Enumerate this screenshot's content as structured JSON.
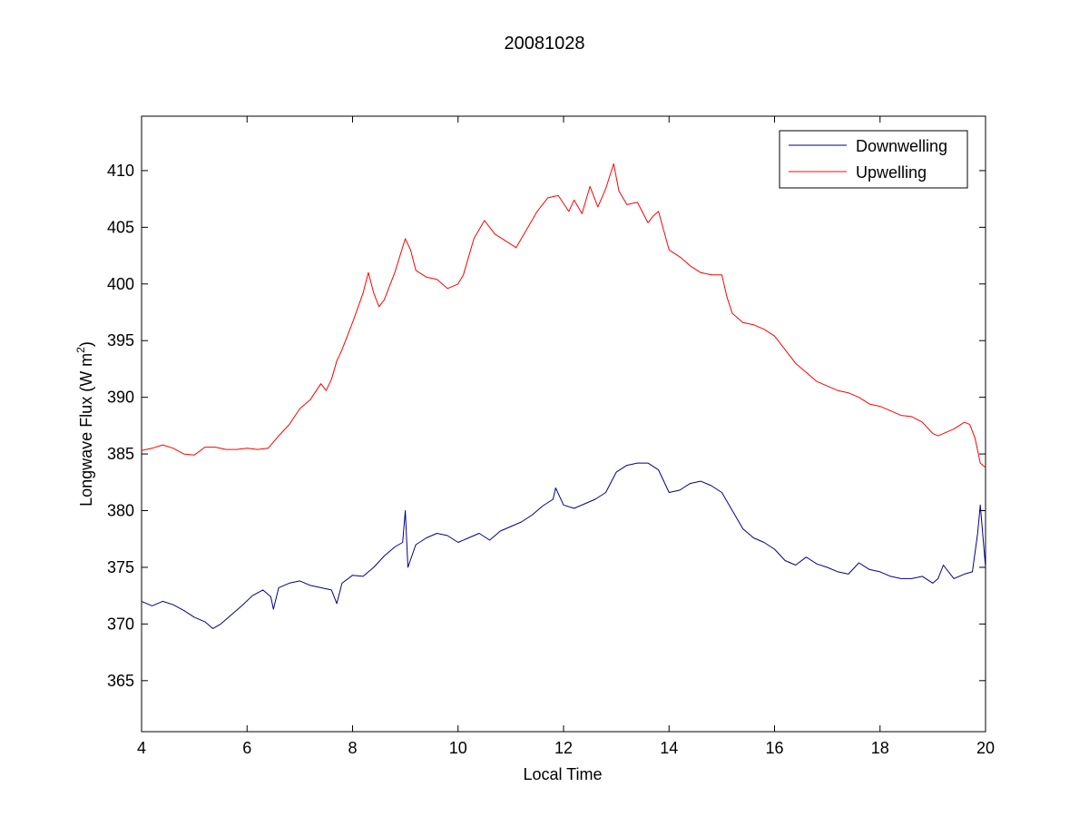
{
  "chart_data": {
    "type": "line",
    "title": "20081028",
    "xlabel": "Local Time",
    "ylabel_main": "Longwave Flux (W m",
    "ylabel_sup": "2",
    "ylabel_close": ")",
    "xlim": [
      4,
      20
    ],
    "ylim": [
      360.5,
      414.8
    ],
    "xticks": [
      "4",
      "6",
      "8",
      "10",
      "12",
      "14",
      "16",
      "18",
      "20"
    ],
    "yticks": [
      "365",
      "370",
      "375",
      "380",
      "385",
      "390",
      "395",
      "400",
      "405",
      "410"
    ],
    "legend_position": "top-right",
    "series": [
      {
        "name": "Downwelling",
        "color": "#00008b",
        "x": [
          4.0,
          4.2,
          4.4,
          4.6,
          4.8,
          5.0,
          5.2,
          5.35,
          5.5,
          5.7,
          5.9,
          6.1,
          6.3,
          6.45,
          6.5,
          6.6,
          6.8,
          7.0,
          7.2,
          7.4,
          7.6,
          7.7,
          7.8,
          8.0,
          8.2,
          8.4,
          8.6,
          8.8,
          8.95,
          9.0,
          9.05,
          9.2,
          9.4,
          9.6,
          9.8,
          10.0,
          10.2,
          10.4,
          10.6,
          10.8,
          11.0,
          11.2,
          11.4,
          11.6,
          11.8,
          11.85,
          12.0,
          12.2,
          12.4,
          12.6,
          12.8,
          13.0,
          13.2,
          13.4,
          13.6,
          13.8,
          14.0,
          14.2,
          14.4,
          14.6,
          14.8,
          15.0,
          15.2,
          15.4,
          15.6,
          15.8,
          16.0,
          16.2,
          16.4,
          16.6,
          16.8,
          17.0,
          17.2,
          17.4,
          17.6,
          17.8,
          18.0,
          18.2,
          18.4,
          18.6,
          18.8,
          19.0,
          19.1,
          19.2,
          19.4,
          19.6,
          19.75,
          19.85,
          19.9,
          20.0
        ],
        "y": [
          372.0,
          371.6,
          372.0,
          371.7,
          371.2,
          370.6,
          370.2,
          369.6,
          370.0,
          370.8,
          371.6,
          372.5,
          373.0,
          372.4,
          371.3,
          373.2,
          373.6,
          373.8,
          373.4,
          373.2,
          373.0,
          371.8,
          373.6,
          374.3,
          374.2,
          375.0,
          376.0,
          376.8,
          377.2,
          380.0,
          375.0,
          377.0,
          377.6,
          378.0,
          377.8,
          377.2,
          377.6,
          378.0,
          377.4,
          378.2,
          378.6,
          379.0,
          379.6,
          380.4,
          381.0,
          382.0,
          380.5,
          380.2,
          380.6,
          381.0,
          381.6,
          383.4,
          384.0,
          384.2,
          384.2,
          383.6,
          381.6,
          381.8,
          382.4,
          382.6,
          382.2,
          381.6,
          380.0,
          378.4,
          377.6,
          377.2,
          376.6,
          375.6,
          375.2,
          375.9,
          375.3,
          375.0,
          374.6,
          374.4,
          375.4,
          374.8,
          374.6,
          374.2,
          374.0,
          374.0,
          374.2,
          373.6,
          374.0,
          375.2,
          374.0,
          374.4,
          374.6,
          378.0,
          380.5,
          375.0
        ]
      },
      {
        "name": "Upwelling",
        "color": "#ff0000",
        "x": [
          4.0,
          4.2,
          4.4,
          4.6,
          4.8,
          5.0,
          5.2,
          5.4,
          5.6,
          5.8,
          6.0,
          6.2,
          6.4,
          6.6,
          6.8,
          7.0,
          7.2,
          7.4,
          7.5,
          7.6,
          7.7,
          7.8,
          8.0,
          8.2,
          8.3,
          8.4,
          8.5,
          8.6,
          8.8,
          9.0,
          9.1,
          9.2,
          9.4,
          9.6,
          9.8,
          10.0,
          10.1,
          10.3,
          10.5,
          10.7,
          10.9,
          11.1,
          11.3,
          11.5,
          11.7,
          11.9,
          12.1,
          12.2,
          12.35,
          12.5,
          12.65,
          12.8,
          12.95,
          13.05,
          13.2,
          13.4,
          13.6,
          13.7,
          13.8,
          14.0,
          14.2,
          14.4,
          14.6,
          14.8,
          15.0,
          15.1,
          15.2,
          15.4,
          15.6,
          15.8,
          16.0,
          16.2,
          16.4,
          16.6,
          16.8,
          17.0,
          17.2,
          17.4,
          17.6,
          17.8,
          18.0,
          18.2,
          18.4,
          18.6,
          18.8,
          19.0,
          19.1,
          19.2,
          19.4,
          19.6,
          19.7,
          19.8,
          19.9,
          20.0
        ],
        "y": [
          385.3,
          385.5,
          385.8,
          385.5,
          385.0,
          384.9,
          385.6,
          385.6,
          385.4,
          385.4,
          385.5,
          385.4,
          385.5,
          386.6,
          387.6,
          389.0,
          389.8,
          391.2,
          390.6,
          391.6,
          393.2,
          394.2,
          396.6,
          399.2,
          401.0,
          399.2,
          398.0,
          398.6,
          401.0,
          404.0,
          403.0,
          401.2,
          400.6,
          400.4,
          399.6,
          400.0,
          400.8,
          404.0,
          405.6,
          404.4,
          403.8,
          403.2,
          404.8,
          406.4,
          407.6,
          407.8,
          406.4,
          407.4,
          406.2,
          408.6,
          406.8,
          408.4,
          410.6,
          408.2,
          407.0,
          407.2,
          405.4,
          406.0,
          406.4,
          403.0,
          402.4,
          401.6,
          401.0,
          400.8,
          400.8,
          398.8,
          397.4,
          396.6,
          396.4,
          396.0,
          395.4,
          394.2,
          393.0,
          392.2,
          391.4,
          391.0,
          390.6,
          390.4,
          390.0,
          389.4,
          389.2,
          388.8,
          388.4,
          388.3,
          387.8,
          386.8,
          386.6,
          386.8,
          387.2,
          387.8,
          387.6,
          386.4,
          384.2,
          383.8
        ]
      }
    ]
  }
}
